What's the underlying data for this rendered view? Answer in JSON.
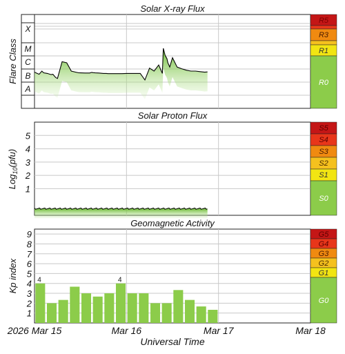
{
  "colors": {
    "green": "#8ccc4a",
    "green_dark": "#5ea829",
    "yellow": "#f2e512",
    "orange1": "#f5c11e",
    "orange2": "#f08a10",
    "red1": "#e8361a",
    "red2": "#c41616",
    "grid": "#c8c8c8",
    "line": "#000000"
  },
  "xaxis": {
    "label": "Universal Time",
    "ticks": [
      "2026 Mar 15",
      "Mar 16",
      "Mar 17",
      "Mar 18"
    ]
  },
  "chart_data": [
    {
      "type": "line",
      "title": "Solar X-ray Flux",
      "ylabel": "Flare Class",
      "y_scale": "log",
      "ylim": [
        1e-09,
        0.01
      ],
      "y_tick_labels": [
        "A",
        "B",
        "C",
        "M",
        "X"
      ],
      "scale_labels": [
        "R5",
        "R4",
        "R3",
        "R2",
        "R1",
        "R0"
      ],
      "grid": true,
      "x": [
        0.0,
        0.05,
        0.08,
        0.1,
        0.14,
        0.18,
        0.2,
        0.23,
        0.25,
        0.3,
        0.35,
        0.4,
        0.45,
        0.48,
        0.5,
        0.55,
        0.6,
        0.62,
        0.64,
        0.66,
        0.7,
        0.75,
        0.78,
        0.8,
        0.85,
        0.9,
        0.95,
        1.0,
        1.05,
        1.1,
        1.15,
        1.2,
        1.25,
        1.3,
        1.35,
        1.39,
        1.4,
        1.42,
        1.44,
        1.45,
        1.47,
        1.5,
        1.55,
        1.6,
        1.65,
        1.7,
        1.75,
        1.8,
        1.85,
        1.88
      ],
      "values": [
        5e-07,
        3.5e-07,
        6e-07,
        4.5e-07,
        4e-07,
        3.3e-07,
        3.5e-07,
        2e-07,
        1.7e-07,
        3e-06,
        2.5e-06,
        6e-07,
        5e-07,
        4.5e-07,
        4.4e-07,
        4.3e-07,
        4.3e-07,
        4.8e-07,
        4.6e-07,
        4.4e-07,
        4.3e-07,
        4e-07,
        4e-07,
        3.9e-07,
        3.9e-07,
        3.9e-07,
        3.9e-07,
        4e-07,
        4e-07,
        4e-07,
        4e-07,
        1.3e-07,
        1e-06,
        6e-07,
        1.7e-06,
        4e-07,
        3e-05,
        9e-06,
        5e-06,
        2.5e-06,
        1.2e-06,
        6e-06,
        1.2e-06,
        9e-07,
        7e-07,
        6e-07,
        6e-07,
        5.5e-07,
        5e-07,
        5.2e-07
      ]
    },
    {
      "type": "line",
      "title": "Solar Proton Flux",
      "ylabel": "Log10(pfu)",
      "ylim": [
        -1,
        6
      ],
      "y_ticks": [
        "1",
        "2",
        "3",
        "4",
        "5"
      ],
      "scale_labels": [
        "S5",
        "S4",
        "S3",
        "S2",
        "S1",
        "S0"
      ],
      "grid": true,
      "x": [
        0.0,
        0.5,
        1.0,
        1.5,
        1.88
      ],
      "values": [
        -0.5,
        -0.5,
        -0.5,
        -0.5,
        -0.5
      ]
    },
    {
      "type": "bar",
      "title": "Geomagnetic Activity",
      "ylabel": "Kp index",
      "ylim": [
        0,
        9.5
      ],
      "y_ticks": [
        "1",
        "2",
        "3",
        "4",
        "5",
        "6",
        "7",
        "8",
        "9"
      ],
      "scale_labels": [
        "G5",
        "G4",
        "G3",
        "G2",
        "G1",
        "G0"
      ],
      "grid": true,
      "values": [
        4.0,
        2.0,
        2.33,
        3.67,
        3.0,
        2.67,
        3.0,
        4.0,
        3.0,
        3.0,
        2.0,
        2.0,
        3.33,
        2.33,
        1.67,
        1.33
      ],
      "annotations": [
        "4",
        "",
        "",
        "",
        "",
        "",
        "",
        "4",
        "",
        "",
        "",
        "",
        "",
        "",
        "",
        ""
      ]
    }
  ]
}
